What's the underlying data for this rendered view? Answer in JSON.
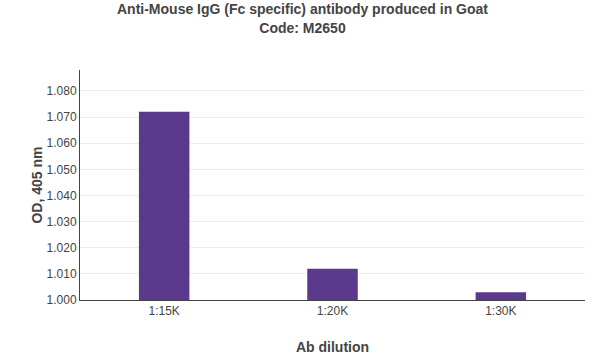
{
  "chart_data": {
    "type": "bar",
    "title": "Anti-Mouse IgG (Fc specific) antibody produced in Goat",
    "subtitle": "Code: M2650",
    "x_label": "Ab dilution",
    "y_label": "OD, 405 nm",
    "categories": [
      "1:15K",
      "1:20K",
      "1:30K"
    ],
    "values": [
      1.072,
      1.012,
      1.003
    ],
    "color": "#5B3A8E",
    "ylim": [
      1.0,
      1.088
    ],
    "yticks": [
      {
        "value": 1.0,
        "label": "1.000"
      },
      {
        "value": 1.01,
        "label": "1.010"
      },
      {
        "value": 1.02,
        "label": "1.020"
      },
      {
        "value": 1.03,
        "label": "1.030"
      },
      {
        "value": 1.04,
        "label": "1.040"
      },
      {
        "value": 1.05,
        "label": "1.050"
      },
      {
        "value": 1.06,
        "label": "1.060"
      },
      {
        "value": 1.07,
        "label": "1.070"
      },
      {
        "value": 1.08,
        "label": "1.080"
      }
    ],
    "grid": true
  }
}
